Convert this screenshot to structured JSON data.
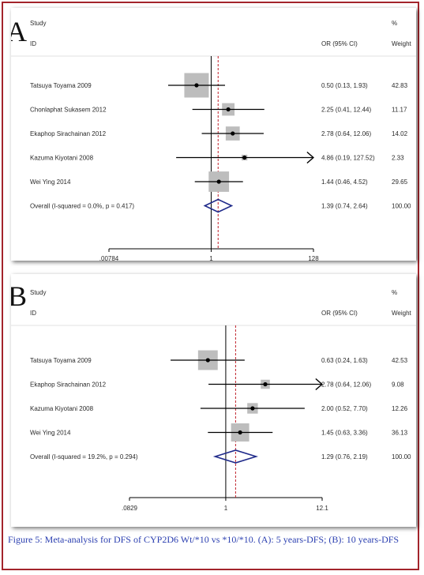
{
  "figure": {
    "caption": "Figure 5: Meta-analysis for DFS of CYP2D6 Wt/*10 vs *10/*10. (A): 5 years-DFS; (B): 10 years-DFS"
  },
  "chart_data": [
    {
      "type": "forest",
      "panel_label": "A",
      "headers": {
        "study": "Study",
        "id": "ID",
        "or": "OR (95% CI)",
        "pct": "%",
        "weight": "Weight"
      },
      "xticks": [
        ".00784",
        "1",
        "128"
      ],
      "xlim": [
        0.00784,
        128
      ],
      "xscale": "log",
      "studies": [
        {
          "name": "Tatsuya Toyama 2009",
          "or": 0.5,
          "lo": 0.13,
          "hi": 1.93,
          "or_text": "0.50 (0.13, 1.93)",
          "weight": 42.83,
          "weight_text": "42.83"
        },
        {
          "name": "Chonlaphat  Sukasem 2012",
          "or": 2.25,
          "lo": 0.41,
          "hi": 12.44,
          "or_text": "2.25 (0.41, 12.44)",
          "weight": 11.17,
          "weight_text": "11.17"
        },
        {
          "name": "Ekaphop Sirachainan 2012",
          "or": 2.78,
          "lo": 0.64,
          "hi": 12.06,
          "or_text": "2.78 (0.64, 12.06)",
          "weight": 14.02,
          "weight_text": "14.02"
        },
        {
          "name": "Kazuma Kiyotani 2008",
          "or": 4.86,
          "lo": 0.19,
          "hi": 127.52,
          "or_text": "4.86 (0.19, 127.52)",
          "weight": 2.33,
          "weight_text": "2.33"
        },
        {
          "name": "Wei Ying 2014",
          "or": 1.44,
          "lo": 0.46,
          "hi": 4.52,
          "or_text": "1.44 (0.46, 4.52)",
          "weight": 29.65,
          "weight_text": "29.65"
        }
      ],
      "overall": {
        "label": "Overall  (I-squared = 0.0%, p = 0.417)",
        "or": 1.39,
        "lo": 0.74,
        "hi": 2.64,
        "or_text": "1.39 (0.74, 2.64)",
        "weight_text": "100.00"
      }
    },
    {
      "type": "forest",
      "panel_label": "B",
      "headers": {
        "study": "Study",
        "id": "ID",
        "or": "OR (95% CI)",
        "pct": "%",
        "weight": "Weight"
      },
      "xticks": [
        ".0829",
        "1",
        "12.1"
      ],
      "xlim": [
        0.0829,
        12.1
      ],
      "xscale": "log",
      "studies": [
        {
          "name": "Tatsuya Toyama 2009",
          "or": 0.63,
          "lo": 0.24,
          "hi": 1.63,
          "or_text": "0.63 (0.24, 1.63)",
          "weight": 42.53,
          "weight_text": "42.53"
        },
        {
          "name": "Ekaphop Sirachainan 2012",
          "or": 2.78,
          "lo": 0.64,
          "hi": 12.06,
          "or_text": "2.78 (0.64, 12.06)",
          "weight": 9.08,
          "weight_text": "9.08"
        },
        {
          "name": "Kazuma Kiyotani 2008",
          "or": 2.0,
          "lo": 0.52,
          "hi": 7.7,
          "or_text": "2.00 (0.52, 7.70)",
          "weight": 12.26,
          "weight_text": "12.26"
        },
        {
          "name": "Wei Ying 2014",
          "or": 1.45,
          "lo": 0.63,
          "hi": 3.36,
          "or_text": "1.45 (0.63, 3.36)",
          "weight": 36.13,
          "weight_text": "36.13"
        }
      ],
      "overall": {
        "label": "Overall  (I-squared = 19.2%, p = 0.294)",
        "or": 1.29,
        "lo": 0.76,
        "hi": 2.19,
        "or_text": "1.29 (0.76, 2.19)",
        "weight_text": "100.00"
      }
    }
  ],
  "colors": {
    "diamond": "#1f2a8a",
    "reference_line": "#c0202a",
    "box": "#bdbdbd",
    "caption": "#2b3fb0",
    "frame": "#a3242b"
  }
}
